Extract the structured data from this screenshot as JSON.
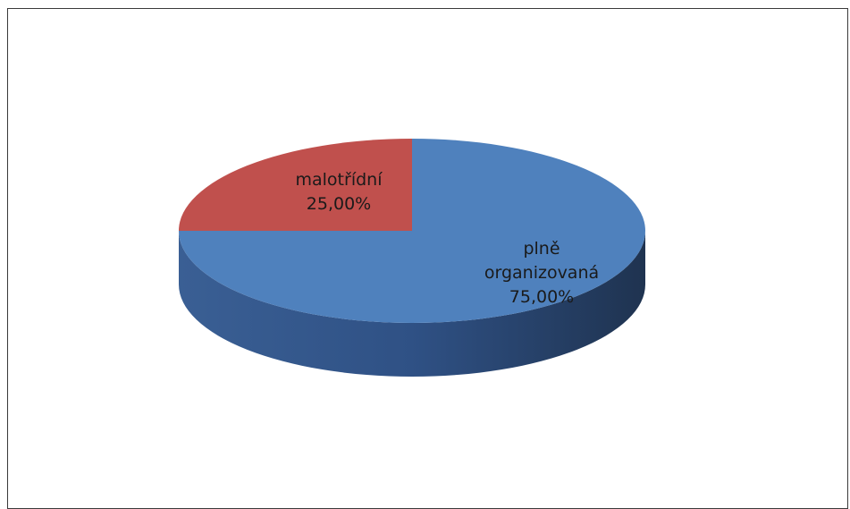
{
  "chart_data": {
    "type": "pie",
    "title": "",
    "slices": [
      {
        "label": "plně organizovaná",
        "label_lines": [
          "plně",
          "organizovaná"
        ],
        "value": 75.0,
        "value_label": "75,00%",
        "color": "#4F81BD",
        "side_color": "#2b4a75"
      },
      {
        "label": "malotřídní",
        "label_lines": [
          "malotřídní"
        ],
        "value": 25.0,
        "value_label": "25,00%",
        "color": "#C0504D",
        "side_color": "#7d2f2d"
      }
    ],
    "style": "3d",
    "legend": "none"
  }
}
